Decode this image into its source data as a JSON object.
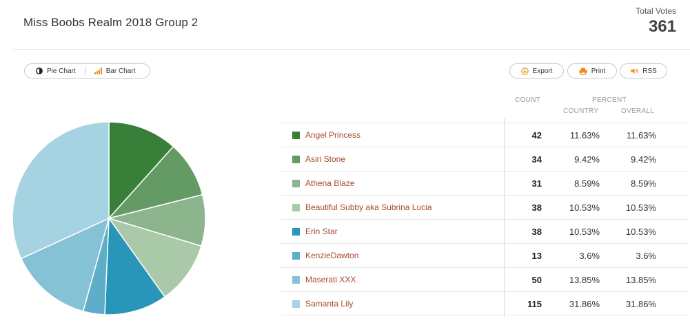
{
  "header": {
    "title": "Miss Boobs Realm 2018 Group 2",
    "total_votes_label": "Total Votes",
    "total_votes_value": "361"
  },
  "toolbar": {
    "pie_chart_label": "Pie Chart",
    "bar_chart_label": "Bar Chart",
    "export_label": "Export",
    "print_label": "Print",
    "rss_label": "RSS"
  },
  "table": {
    "count_header": "COUNT",
    "percent_header": "PERCENT",
    "country_header": "COUNTRY",
    "overall_header": "OVERALL",
    "rows": [
      {
        "name": "Angel Princess",
        "count": "42",
        "country": "11.63%",
        "overall": "11.63%",
        "color": "#38803a"
      },
      {
        "name": "Asiri Stone",
        "count": "34",
        "country": "9.42%",
        "overall": "9.42%",
        "color": "#649b65"
      },
      {
        "name": "Athena Blaze",
        "count": "31",
        "country": "8.59%",
        "overall": "8.59%",
        "color": "#8db58d"
      },
      {
        "name": "Beautiful Subby aka Subrina Lucia",
        "count": "38",
        "country": "10.53%",
        "overall": "10.53%",
        "color": "#aac9a9"
      },
      {
        "name": "Erin Star",
        "count": "38",
        "country": "10.53%",
        "overall": "10.53%",
        "color": "#2995b9"
      },
      {
        "name": "KenzieDawton",
        "count": "13",
        "country": "3.6%",
        "overall": "3.6%",
        "color": "#5eadc9"
      },
      {
        "name": "Maserati XXX",
        "count": "50",
        "country": "13.85%",
        "overall": "13.85%",
        "color": "#86c2d6"
      },
      {
        "name": "Samanta Lily",
        "count": "115",
        "country": "31.86%",
        "overall": "31.86%",
        "color": "#a6d3e1"
      }
    ]
  },
  "chart_data": {
    "type": "pie",
    "title": "Miss Boobs Realm 2018 Group 2",
    "categories": [
      "Angel Princess",
      "Asiri Stone",
      "Athena Blaze",
      "Beautiful Subby aka Subrina Lucia",
      "Erin Star",
      "KenzieDawton",
      "Maserati XXX",
      "Samanta Lily"
    ],
    "values": [
      42,
      34,
      31,
      38,
      38,
      13,
      50,
      115
    ],
    "colors": [
      "#38803a",
      "#649b65",
      "#8db58d",
      "#aac9a9",
      "#2995b9",
      "#5eadc9",
      "#86c2d6",
      "#a6d3e1"
    ],
    "total": 361
  }
}
